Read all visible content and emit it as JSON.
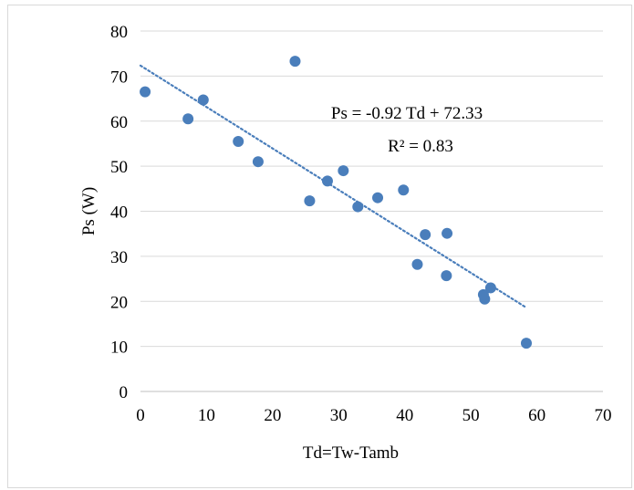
{
  "chart_data": {
    "type": "scatter",
    "title": "",
    "xlabel": "Td=Tw-Tamb",
    "ylabel": "Ps (W)",
    "xlim": [
      0,
      70
    ],
    "ylim": [
      0,
      80
    ],
    "x_ticks": [
      0,
      10,
      20,
      30,
      40,
      50,
      60,
      70
    ],
    "y_ticks": [
      0,
      10,
      20,
      30,
      40,
      50,
      60,
      70,
      80
    ],
    "grid": "horizontal",
    "legend": "none",
    "series": [
      {
        "color": "#4a7ebb",
        "points": [
          [
            0.7,
            66.5
          ],
          [
            7.2,
            60.5
          ],
          [
            9.5,
            64.7
          ],
          [
            14.8,
            55.5
          ],
          [
            17.8,
            51.0
          ],
          [
            23.4,
            73.3
          ],
          [
            25.6,
            42.3
          ],
          [
            28.3,
            46.7
          ],
          [
            30.7,
            49.0
          ],
          [
            32.9,
            41.0
          ],
          [
            35.9,
            43.0
          ],
          [
            39.8,
            44.7
          ],
          [
            41.9,
            28.2
          ],
          [
            43.1,
            34.8
          ],
          [
            46.3,
            25.7
          ],
          [
            46.4,
            35.1
          ],
          [
            51.9,
            21.5
          ],
          [
            52.1,
            20.5
          ],
          [
            53.0,
            23.0
          ],
          [
            58.4,
            10.7
          ]
        ]
      }
    ],
    "trendline": {
      "type": "linear",
      "slope": -0.92,
      "intercept": 72.33,
      "x_range": [
        0,
        58.4
      ],
      "style": "dotted",
      "color": "#4a7ebb",
      "equation_label": "Ps = -0.92 Td + 72.33",
      "r2_label": "R² = 0.83"
    }
  }
}
